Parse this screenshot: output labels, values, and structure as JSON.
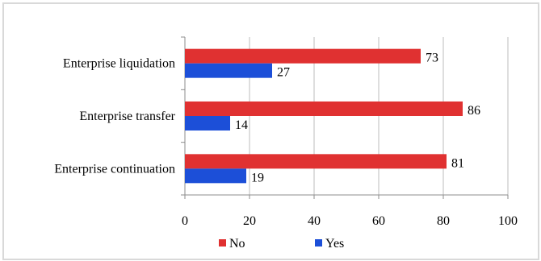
{
  "chart_data": {
    "type": "bar",
    "orientation": "horizontal",
    "title": "",
    "xlabel": "",
    "ylabel": "",
    "categories": [
      "Enterprise liquidation",
      "Enterprise transfer",
      "Enterprise continuation"
    ],
    "series": [
      {
        "name": "No",
        "values": [
          73,
          86,
          81
        ],
        "color": "#e03131"
      },
      {
        "name": "Yes",
        "values": [
          27,
          14,
          19
        ],
        "color": "#1c4fd8"
      }
    ],
    "xlim": [
      0,
      100
    ],
    "xticks": [
      0,
      20,
      40,
      60,
      80,
      100
    ],
    "grid": "vertical",
    "legend_position": "bottom"
  }
}
